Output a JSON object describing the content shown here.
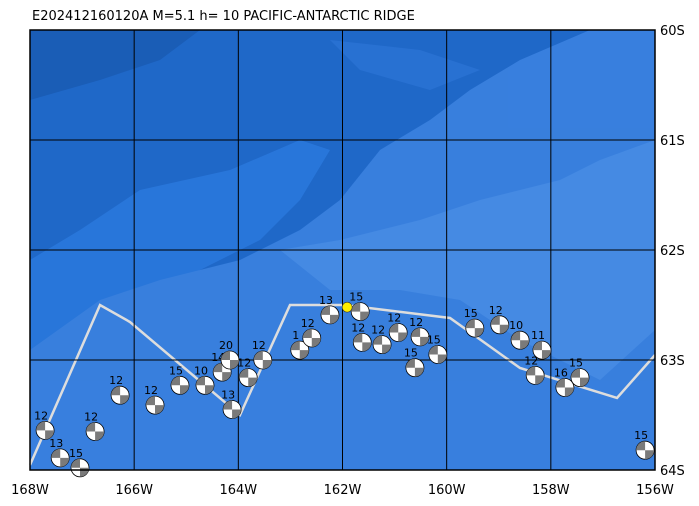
{
  "header": {
    "title": "E202412160120A  M=5.1  h= 10 PACIFIC-ANTARCTIC RIDGE"
  },
  "map": {
    "xlim": [
      -168,
      -156
    ],
    "ylim": [
      -60,
      -64
    ],
    "xticks": [
      {
        "value": -168,
        "label": "168W"
      },
      {
        "value": -166,
        "label": "166W"
      },
      {
        "value": -164,
        "label": "164W"
      },
      {
        "value": -162,
        "label": "162W"
      },
      {
        "value": -160,
        "label": "160W"
      },
      {
        "value": -158,
        "label": "158W"
      },
      {
        "value": -156,
        "label": "156W"
      }
    ],
    "yticks": [
      {
        "value": -60,
        "label": "60S"
      },
      {
        "value": -61,
        "label": "61S"
      },
      {
        "value": -62,
        "label": "62S"
      },
      {
        "value": -63,
        "label": "63S"
      },
      {
        "value": -64,
        "label": "64S"
      }
    ],
    "epicenter": {
      "lon": -161.91,
      "lat": -62.52
    },
    "events": [
      {
        "lon": -167.71,
        "lat": -63.64,
        "label": "12"
      },
      {
        "lon": -167.42,
        "lat": -63.89,
        "label": "13"
      },
      {
        "lon": -167.04,
        "lat": -63.98,
        "label": "15"
      },
      {
        "lon": -166.75,
        "lat": -63.65,
        "label": "12"
      },
      {
        "lon": -166.27,
        "lat": -63.32,
        "label": "12"
      },
      {
        "lon": -165.6,
        "lat": -63.41,
        "label": "12"
      },
      {
        "lon": -165.12,
        "lat": -63.23,
        "label": "15"
      },
      {
        "lon": -164.64,
        "lat": -63.23,
        "label": "10"
      },
      {
        "lon": -164.31,
        "lat": -63.11,
        "label": "14"
      },
      {
        "lon": -164.16,
        "lat": -63.0,
        "label": "20"
      },
      {
        "lon": -164.12,
        "lat": -63.45,
        "label": "13"
      },
      {
        "lon": -163.81,
        "lat": -63.16,
        "label": "12"
      },
      {
        "lon": -163.53,
        "lat": -63.0,
        "label": "12"
      },
      {
        "lon": -162.82,
        "lat": -62.91,
        "label": "1"
      },
      {
        "lon": -162.59,
        "lat": -62.8,
        "label": "12"
      },
      {
        "lon": -162.24,
        "lat": -62.59,
        "label": "13"
      },
      {
        "lon": -161.66,
        "lat": -62.56,
        "label": "15"
      },
      {
        "lon": -161.62,
        "lat": -62.84,
        "label": "12"
      },
      {
        "lon": -161.24,
        "lat": -62.86,
        "label": "12"
      },
      {
        "lon": -160.93,
        "lat": -62.75,
        "label": "12"
      },
      {
        "lon": -160.51,
        "lat": -62.79,
        "label": "12"
      },
      {
        "lon": -160.61,
        "lat": -63.07,
        "label": "15"
      },
      {
        "lon": -160.17,
        "lat": -62.95,
        "label": "15"
      },
      {
        "lon": -159.46,
        "lat": -62.71,
        "label": "15"
      },
      {
        "lon": -158.98,
        "lat": -62.68,
        "label": "12"
      },
      {
        "lon": -158.59,
        "lat": -62.82,
        "label": "10"
      },
      {
        "lon": -158.17,
        "lat": -62.91,
        "label": "11"
      },
      {
        "lon": -158.3,
        "lat": -63.14,
        "label": "12"
      },
      {
        "lon": -157.73,
        "lat": -63.25,
        "label": "16"
      },
      {
        "lon": -157.44,
        "lat": -63.16,
        "label": "15"
      },
      {
        "lon": -156.19,
        "lat": -63.82,
        "label": "15"
      }
    ]
  }
}
